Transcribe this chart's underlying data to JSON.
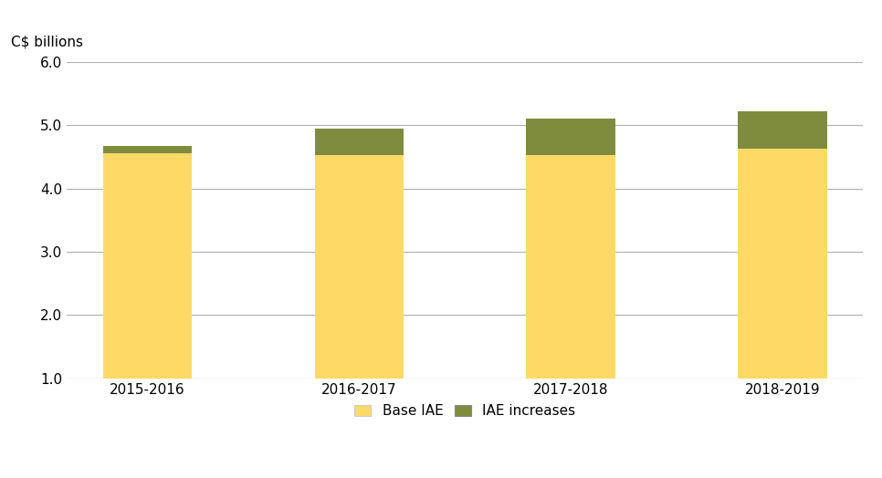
{
  "categories": [
    "2015-2016",
    "2016-2017",
    "2017-2018",
    "2018-2019"
  ],
  "base_iae": [
    4.55,
    4.52,
    4.52,
    4.62
  ],
  "iae_increases": [
    0.12,
    0.43,
    0.58,
    0.6
  ],
  "base_color": "#FFD966",
  "increase_color": "#7F8C3E",
  "ylabel": "C$ billions",
  "ylim_min": 1.0,
  "ylim_max": 6.0,
  "yticks": [
    1.0,
    2.0,
    3.0,
    4.0,
    5.0,
    6.0
  ],
  "legend_base": "Base IAE",
  "legend_increase": "IAE increases",
  "bar_width": 0.42,
  "background_color": "#ffffff",
  "grid_color": "#b0b0b0",
  "tick_fontsize": 11,
  "label_fontsize": 11,
  "bar_bottom": 1.0
}
